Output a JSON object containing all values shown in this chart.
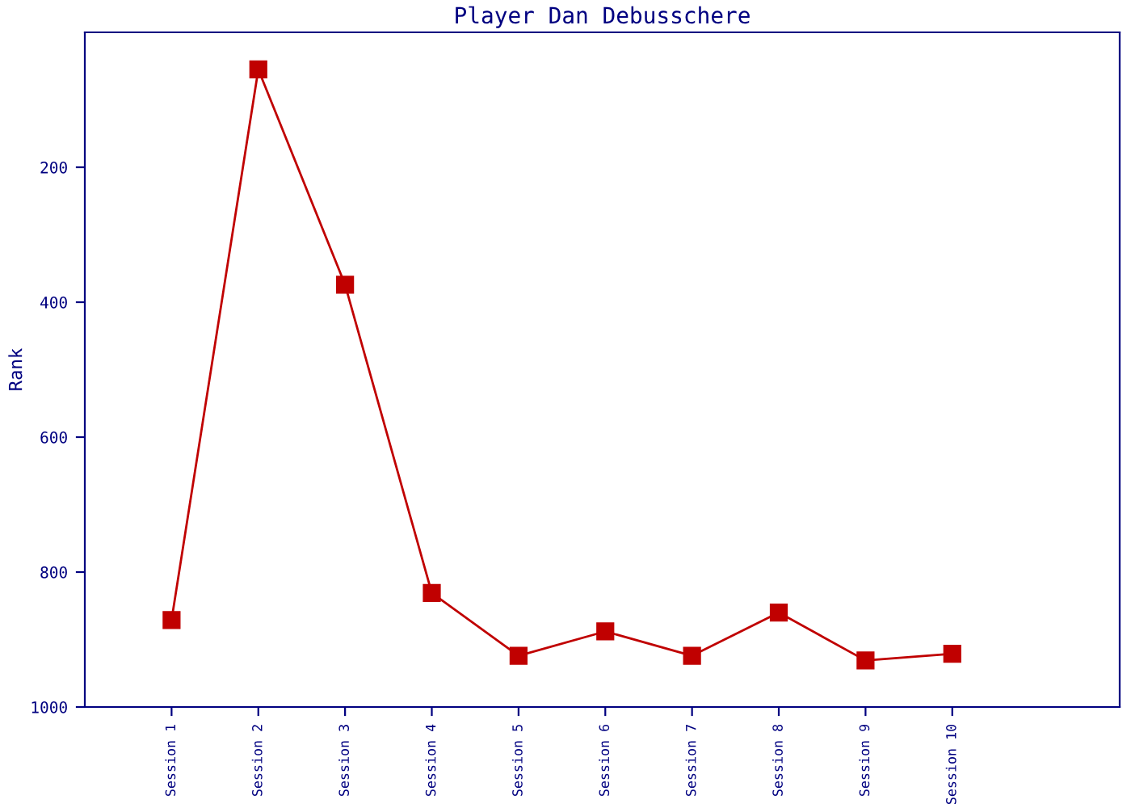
{
  "chart_data": {
    "type": "line",
    "title": "Player Dan Debusschere",
    "ylabel": "Rank",
    "categories": [
      "Session 1",
      "Session 2",
      "Session 3",
      "Session 4",
      "Session 5",
      "Session 6",
      "Session 7",
      "Session 8",
      "Session 9",
      "Session 10"
    ],
    "series": [
      {
        "color": "#c00000",
        "values": [
          871,
          55,
          374,
          831,
          924,
          888,
          924,
          860,
          931,
          921
        ]
      }
    ],
    "ylim": [
      1000,
      0
    ],
    "yticks": [
      200,
      400,
      600,
      800,
      1000
    ],
    "grid": false,
    "legend": false,
    "marker": "square",
    "line_style": "solid"
  }
}
